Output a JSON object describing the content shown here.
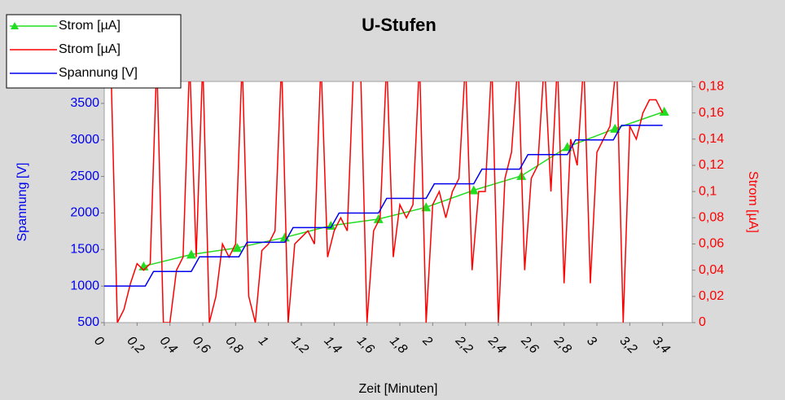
{
  "chart_data": {
    "type": "line",
    "title": "U-Stufen",
    "xlabel": "Zeit [Minuten]",
    "ylabel": "Spannung [V]",
    "y2label": "Strom [µA]",
    "legend": "upper left",
    "xlim": [
      0,
      3.58
    ],
    "ylim": [
      500,
      3800
    ],
    "y2lim": [
      0,
      0.184
    ],
    "xticks": [
      0,
      {
        "value": 0.2,
        "label": "0,2"
      },
      {
        "value": 0.4,
        "label": "0,4"
      },
      {
        "value": 0.6,
        "label": "0,6"
      },
      {
        "value": 0.8,
        "label": "0,8"
      },
      1,
      {
        "value": 1.2,
        "label": "1,2"
      },
      {
        "value": 1.4,
        "label": "1,4"
      },
      {
        "value": 1.6,
        "label": "1,6"
      },
      {
        "value": 1.8,
        "label": "1,8"
      },
      2,
      {
        "value": 2.2,
        "label": "2,2"
      },
      {
        "value": 2.4,
        "label": "2,4"
      },
      {
        "value": 2.6,
        "label": "2,6"
      },
      {
        "value": 2.8,
        "label": "2,8"
      },
      3,
      {
        "value": 3.2,
        "label": "3,2"
      },
      {
        "value": 3.4,
        "label": "3,4"
      }
    ],
    "yticks": [
      500,
      1000,
      1500,
      2000,
      2500,
      3000,
      3500
    ],
    "y2ticks": [
      0,
      {
        "value": 0.02,
        "label": "0,02"
      },
      {
        "value": 0.04,
        "label": "0,04"
      },
      {
        "value": 0.06,
        "label": "0,06"
      },
      {
        "value": 0.08,
        "label": "0,08"
      },
      {
        "value": 0.1,
        "label": "0,1"
      },
      {
        "value": 0.12,
        "label": "0,12"
      },
      {
        "value": 0.14,
        "label": "0,14"
      },
      {
        "value": 0.16,
        "label": "0,16"
      },
      {
        "value": 0.18,
        "label": "0,18"
      }
    ],
    "series": [
      {
        "name": "Strom [µA]",
        "color": "#22dd22",
        "axis": "y2",
        "marker": "triangle",
        "x": [
          0.24,
          0.53,
          0.81,
          1.1,
          1.38,
          1.67,
          1.96,
          2.25,
          2.54,
          2.82,
          3.11,
          3.41
        ],
        "values": [
          0.043,
          0.052,
          0.057,
          0.065,
          0.074,
          0.079,
          0.088,
          0.101,
          0.112,
          0.134,
          0.148,
          0.161
        ]
      },
      {
        "name": "Strom [µA]",
        "color": "#ff0000",
        "axis": "y2",
        "x": [
          0.04,
          0.08,
          0.12,
          0.16,
          0.2,
          0.24,
          0.28,
          0.32,
          0.36,
          0.4,
          0.44,
          0.48,
          0.52,
          0.56,
          0.6,
          0.64,
          0.68,
          0.72,
          0.76,
          0.8,
          0.84,
          0.88,
          0.92,
          0.96,
          1,
          1.04,
          1.08,
          1.12,
          1.16,
          1.2,
          1.24,
          1.28,
          1.32,
          1.36,
          1.4,
          1.44,
          1.48,
          1.52,
          1.56,
          1.6,
          1.64,
          1.68,
          1.72,
          1.76,
          1.8,
          1.84,
          1.88,
          1.92,
          1.96,
          2,
          2.04,
          2.08,
          2.12,
          2.16,
          2.2,
          2.24,
          2.28,
          2.32,
          2.36,
          2.4,
          2.44,
          2.48,
          2.52,
          2.56,
          2.6,
          2.64,
          2.68,
          2.72,
          2.76,
          2.8,
          2.84,
          2.88,
          2.92,
          2.96,
          3,
          3.04,
          3.08,
          3.12,
          3.16,
          3.2,
          3.24,
          3.28,
          3.32,
          3.36,
          3.4
        ],
        "values": [
          0.2,
          0,
          0.01,
          0.03,
          0.045,
          0.04,
          0.045,
          0.2,
          0,
          0,
          0.04,
          0.05,
          0.2,
          0.05,
          0.2,
          0,
          0.02,
          0.06,
          0.05,
          0.06,
          0.2,
          0.02,
          0,
          0.055,
          0.06,
          0.07,
          0.2,
          0,
          0.06,
          0.065,
          0.07,
          0.06,
          0.2,
          0.05,
          0.07,
          0.08,
          0.07,
          0.2,
          0.2,
          0,
          0.07,
          0.08,
          0.2,
          0.05,
          0.09,
          0.08,
          0.09,
          0.2,
          0,
          0.09,
          0.1,
          0.08,
          0.1,
          0.11,
          0.2,
          0.04,
          0.1,
          0.1,
          0.2,
          0,
          0.11,
          0.13,
          0.2,
          0.04,
          0.11,
          0.12,
          0.2,
          0.1,
          0.2,
          0.03,
          0.14,
          0.12,
          0.2,
          0.03,
          0.13,
          0.14,
          0.15,
          0.2,
          0,
          0.15,
          0.14,
          0.16,
          0.17,
          0.17,
          0.16
        ]
      },
      {
        "name": "Spannung [V]",
        "color": "#0000ee",
        "axis": "y",
        "x": [
          0,
          0.25,
          0.3,
          0.53,
          0.58,
          0.82,
          0.87,
          1.1,
          1.15,
          1.38,
          1.43,
          1.67,
          1.72,
          1.96,
          2.01,
          2.25,
          2.3,
          2.53,
          2.58,
          2.82,
          2.87,
          3.1,
          3.15,
          3.4
        ],
        "values": [
          1000,
          1000,
          1200,
          1200,
          1400,
          1400,
          1600,
          1600,
          1800,
          1800,
          2000,
          2000,
          2200,
          2200,
          2400,
          2400,
          2600,
          2600,
          2800,
          2800,
          3000,
          3000,
          3200,
          3200
        ]
      }
    ]
  }
}
